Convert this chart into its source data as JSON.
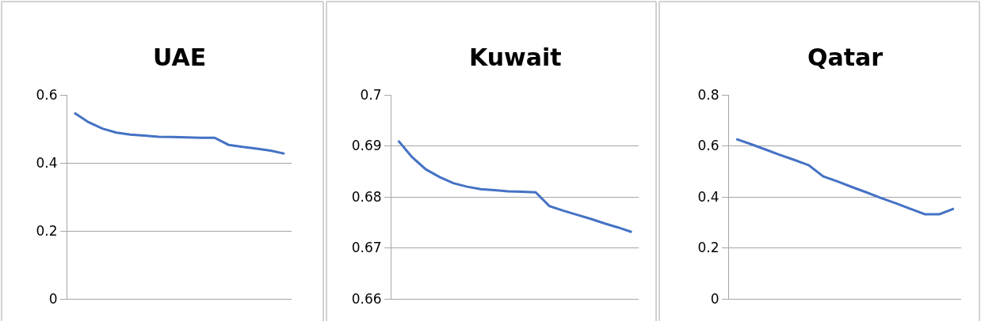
{
  "chart_data": [
    {
      "type": "line",
      "title": "UAE",
      "categories": [
        null,
        null,
        null,
        null,
        null,
        null,
        null,
        null,
        null,
        null,
        null,
        null,
        null,
        null,
        null,
        null
      ],
      "series": [
        {
          "color": "#4472c4",
          "values": [
            0.547,
            0.52,
            0.501,
            0.489,
            0.483,
            0.48,
            0.477,
            0.476,
            0.475,
            0.474,
            0.474,
            0.453,
            0.447,
            0.442,
            0.436,
            0.427
          ]
        }
      ],
      "ylim": [
        0,
        0.6
      ],
      "yticks": [
        0,
        0.2,
        0.4,
        0.6
      ],
      "grid": "y",
      "tick_labels": "y"
    },
    {
      "type": "line",
      "title": "Kuwait",
      "categories": [
        null,
        null,
        null,
        null,
        null,
        null,
        null,
        null,
        null,
        null,
        null,
        null,
        null,
        null,
        null,
        null,
        null,
        null
      ],
      "series": [
        {
          "color": "#4472c4",
          "values": [
            0.691,
            0.6878,
            0.6854,
            0.6839,
            0.6827,
            0.682,
            0.6815,
            0.6813,
            0.6811,
            0.681,
            0.6809,
            0.6782,
            0.6773,
            0.6765,
            0.6757,
            0.6748,
            0.674,
            0.6731
          ]
        }
      ],
      "ylim": [
        0.66,
        0.7
      ],
      "yticks": [
        0.66,
        0.67,
        0.68,
        0.69,
        0.7
      ],
      "grid": "y",
      "tick_labels": "y"
    },
    {
      "type": "line",
      "title": "Qatar",
      "categories": [
        null,
        null,
        null,
        null,
        null,
        null,
        null,
        null,
        null,
        null,
        null,
        null,
        null,
        null,
        null,
        null
      ],
      "series": [
        {
          "color": "#4472c4",
          "values": [
            0.627,
            0.607,
            0.586,
            0.565,
            0.545,
            0.524,
            0.48,
            0.46,
            0.438,
            0.417,
            0.395,
            0.375,
            0.353,
            0.332,
            0.332,
            0.354
          ]
        }
      ],
      "ylim": [
        0,
        0.8
      ],
      "yticks": [
        0,
        0.2,
        0.4,
        0.6,
        0.8
      ],
      "grid": "y",
      "tick_labels": "y"
    }
  ]
}
